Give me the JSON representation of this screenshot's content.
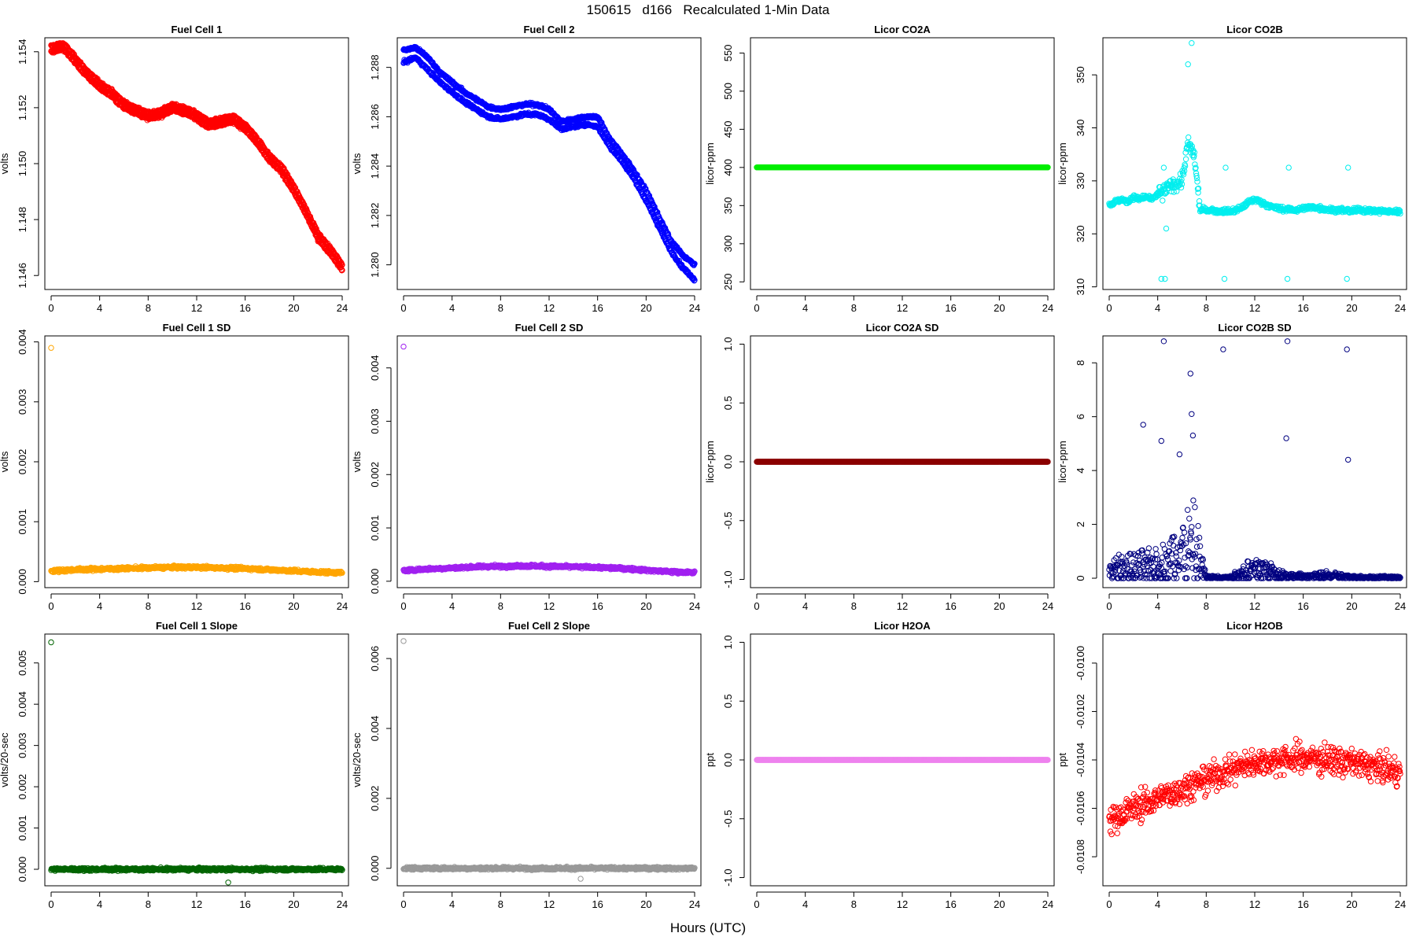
{
  "figure": {
    "title": "150615   d166   Recalculated 1-Min Data",
    "xlabel": "Hours (UTC)"
  },
  "chart_data": [
    {
      "id": "fc1",
      "type": "scatter",
      "title": "Fuel Cell 1",
      "ylabel": "volts",
      "color": "#ff0000",
      "xlim": [
        0,
        24
      ],
      "xticks": [
        0,
        4,
        8,
        12,
        16,
        20,
        24
      ],
      "ylim": [
        1.1455,
        1.1545
      ],
      "yticks": [
        1.146,
        1.148,
        1.15,
        1.152,
        1.154
      ],
      "yticklabels": [
        "1.146",
        "1.148",
        "1.150",
        "1.152",
        "1.154"
      ],
      "x": [
        0,
        1,
        2,
        3,
        4,
        5,
        6,
        7,
        8,
        9,
        10,
        11,
        12,
        13,
        14,
        15,
        16,
        17,
        18,
        19,
        20,
        21,
        22,
        23,
        24
      ],
      "series": [
        {
          "values": [
            1.1542,
            1.1543,
            1.1538,
            1.1533,
            1.1529,
            1.1526,
            1.1522,
            1.152,
            1.1518,
            1.1519,
            1.1521,
            1.152,
            1.1518,
            1.1515,
            1.1516,
            1.1517,
            1.1514,
            1.1509,
            1.1503,
            1.1499,
            1.1492,
            1.1484,
            1.1475,
            1.147,
            1.1464
          ]
        },
        {
          "values": [
            1.154,
            1.1541,
            1.1536,
            1.1531,
            1.1527,
            1.1524,
            1.152,
            1.1518,
            1.1516,
            1.1517,
            1.1519,
            1.1518,
            1.1516,
            1.1513,
            1.1514,
            1.1515,
            1.1512,
            1.1507,
            1.1501,
            1.1497,
            1.149,
            1.1482,
            1.1473,
            1.1468,
            1.1462
          ]
        }
      ]
    },
    {
      "id": "fc2",
      "type": "scatter",
      "title": "Fuel Cell 2",
      "ylabel": "volts",
      "color": "#0000ff",
      "xlim": [
        0,
        24
      ],
      "xticks": [
        0,
        4,
        8,
        12,
        16,
        20,
        24
      ],
      "ylim": [
        1.279,
        1.2892
      ],
      "yticks": [
        1.28,
        1.282,
        1.284,
        1.286,
        1.288
      ],
      "yticklabels": [
        "1.280",
        "1.282",
        "1.284",
        "1.286",
        "1.288"
      ],
      "x": [
        0,
        1,
        2,
        3,
        4,
        5,
        6,
        7,
        8,
        9,
        10,
        11,
        12,
        13,
        14,
        15,
        16,
        17,
        18,
        19,
        20,
        21,
        22,
        23,
        24
      ],
      "series": [
        {
          "values": [
            1.2887,
            1.2888,
            1.2884,
            1.2878,
            1.2874,
            1.287,
            1.2867,
            1.2864,
            1.2863,
            1.2864,
            1.2865,
            1.2865,
            1.2863,
            1.2858,
            1.2859,
            1.286,
            1.286,
            1.2851,
            1.2845,
            1.2838,
            1.283,
            1.282,
            1.281,
            1.2804,
            1.28
          ]
        },
        {
          "values": [
            1.2882,
            1.2884,
            1.2879,
            1.2874,
            1.287,
            1.2866,
            1.2863,
            1.286,
            1.2859,
            1.286,
            1.2861,
            1.2861,
            1.2859,
            1.2855,
            1.2856,
            1.2857,
            1.2856,
            1.2848,
            1.2842,
            1.2835,
            1.2826,
            1.2816,
            1.2806,
            1.2799,
            1.2794
          ]
        }
      ]
    },
    {
      "id": "co2a",
      "type": "scatter",
      "title": "Licor CO2A",
      "ylabel": "licor-ppm",
      "color": "#00ee00",
      "xlim": [
        0,
        24
      ],
      "xticks": [
        0,
        4,
        8,
        12,
        16,
        20,
        24
      ],
      "ylim": [
        240,
        570
      ],
      "yticks": [
        250,
        300,
        350,
        400,
        450,
        500,
        550
      ],
      "yticklabels": [
        "250",
        "300",
        "350",
        "400",
        "450",
        "500",
        "550"
      ],
      "x": [
        0,
        24
      ],
      "series": [
        {
          "values": [
            400,
            400
          ]
        }
      ]
    },
    {
      "id": "co2b",
      "type": "scatter",
      "title": "Licor CO2B",
      "ylabel": "licor-ppm",
      "color": "#00eeee",
      "xlim": [
        0,
        24
      ],
      "xticks": [
        0,
        4,
        8,
        12,
        16,
        20,
        24
      ],
      "ylim": [
        309.5,
        357
      ],
      "yticks": [
        310,
        320,
        330,
        340,
        350
      ],
      "yticklabels": [
        "310",
        "320",
        "330",
        "340",
        "350"
      ],
      "x": [
        0,
        0.5,
        1,
        1.5,
        2,
        2.5,
        3,
        3.5,
        4,
        4.5,
        5,
        5.5,
        6,
        6.5,
        7,
        7.5,
        8,
        8.5,
        9,
        9.5,
        10,
        10.5,
        11,
        11.5,
        12,
        12.5,
        13,
        13.5,
        14,
        14.5,
        15,
        15.5,
        16,
        16.5,
        17,
        17.5,
        18,
        18.5,
        19,
        19.5,
        20,
        20.5,
        21,
        21.5,
        22,
        22.5,
        23,
        23.5,
        24
      ],
      "series": [
        {
          "values": [
            325.5,
            326,
            326.5,
            326,
            327,
            326.5,
            327,
            326.5,
            327.5,
            328,
            329,
            329.5,
            330,
            337,
            335,
            324.5,
            324.5,
            324.5,
            324.2,
            324.3,
            324.2,
            324.5,
            325,
            326,
            326.5,
            326,
            325.5,
            325,
            324.8,
            324.6,
            324.6,
            324.5,
            324.8,
            325,
            325,
            324.8,
            324.6,
            324.5,
            324.5,
            324.4,
            324.3,
            324.5,
            324.5,
            324.4,
            324.3,
            324.3,
            324.2,
            324.2,
            324.2
          ]
        }
      ],
      "outliers": {
        "x": [
          4.3,
          4.5,
          4.7,
          9.5,
          9.6,
          14.7,
          14.8,
          19.6,
          19.7,
          4.6,
          6.8,
          6.5
        ],
        "values": [
          311.5,
          332.5,
          321,
          311.5,
          332.5,
          311.5,
          332.5,
          311.5,
          332.5,
          311.5,
          356,
          352
        ]
      }
    },
    {
      "id": "fc1sd",
      "type": "scatter",
      "title": "Fuel Cell 1 SD",
      "ylabel": "volts",
      "color": "#ffa500",
      "xlim": [
        0,
        24
      ],
      "xticks": [
        0,
        4,
        8,
        12,
        16,
        20,
        24
      ],
      "ylim": [
        -0.0001,
        0.0041
      ],
      "yticks": [
        0,
        0.001,
        0.002,
        0.003,
        0.004
      ],
      "yticklabels": [
        "0.000",
        "0.001",
        "0.002",
        "0.003",
        "0.004"
      ],
      "x": [
        0,
        2,
        4,
        6,
        8,
        10,
        12,
        14,
        16,
        18,
        20,
        22,
        24
      ],
      "series": [
        {
          "values": [
            0.00018,
            0.0002,
            0.00021,
            0.00022,
            0.00023,
            0.00024,
            0.00024,
            0.00023,
            0.00022,
            0.0002,
            0.00018,
            0.00016,
            0.00015
          ]
        }
      ],
      "outliers": {
        "x": [
          0
        ],
        "values": [
          0.0039
        ]
      }
    },
    {
      "id": "fc2sd",
      "type": "scatter",
      "title": "Fuel Cell 2 SD",
      "ylabel": "volts",
      "color": "#a020f0",
      "xlim": [
        0,
        24
      ],
      "xticks": [
        0,
        4,
        8,
        12,
        16,
        20,
        24
      ],
      "ylim": [
        -0.00012,
        0.0046
      ],
      "yticks": [
        0,
        0.001,
        0.002,
        0.003,
        0.004
      ],
      "yticklabels": [
        "0.000",
        "0.001",
        "0.002",
        "0.003",
        "0.004"
      ],
      "x": [
        0,
        2,
        4,
        6,
        8,
        10,
        12,
        14,
        16,
        18,
        20,
        22,
        24
      ],
      "series": [
        {
          "values": [
            0.0002,
            0.00023,
            0.00025,
            0.00027,
            0.00028,
            0.00029,
            0.00028,
            0.00027,
            0.00026,
            0.00024,
            0.00021,
            0.00018,
            0.00016
          ]
        }
      ],
      "outliers": {
        "x": [
          0
        ],
        "values": [
          0.0044
        ]
      }
    },
    {
      "id": "co2asd",
      "type": "scatter",
      "title": "Licor CO2A SD",
      "ylabel": "licor-ppm",
      "color": "#8b0000",
      "xlim": [
        0,
        24
      ],
      "xticks": [
        0,
        4,
        8,
        12,
        16,
        20,
        24
      ],
      "ylim": [
        -1.07,
        1.07
      ],
      "yticks": [
        -1,
        -0.5,
        0,
        0.5,
        1
      ],
      "yticklabels": [
        "-1.0",
        "-0.5",
        "0.0",
        "0.5",
        "1.0"
      ],
      "x": [
        0,
        24
      ],
      "series": [
        {
          "values": [
            0,
            0
          ]
        }
      ]
    },
    {
      "id": "co2bsd",
      "type": "scatter",
      "title": "Licor CO2B SD",
      "ylabel": "licor-ppm",
      "color": "#000080",
      "xlim": [
        0,
        24
      ],
      "xticks": [
        0,
        4,
        8,
        12,
        16,
        20,
        24
      ],
      "ylim": [
        -0.35,
        9.0
      ],
      "yticks": [
        0,
        2,
        4,
        6,
        8
      ],
      "yticklabels": [
        "0",
        "2",
        "4",
        "6",
        "8"
      ],
      "x": [
        0,
        1,
        2,
        3,
        4,
        5,
        6,
        7,
        8,
        9,
        10,
        11,
        12,
        13,
        14,
        15,
        16,
        17,
        18,
        19,
        20,
        21,
        22,
        23,
        24
      ],
      "series": [
        {
          "values": [
            0.4,
            0.5,
            0.5,
            0.6,
            0.6,
            0.9,
            1.3,
            1.6,
            0.05,
            0.05,
            0.05,
            0.3,
            0.5,
            0.4,
            0.2,
            0.1,
            0.1,
            0.1,
            0.15,
            0.1,
            0.05,
            0.05,
            0.05,
            0.05,
            0.03
          ]
        }
      ],
      "outliers": {
        "x": [
          4.5,
          6.7,
          6.8,
          9.4,
          14.7,
          19.6,
          2.8,
          4.3,
          14.6,
          19.7,
          5.8,
          6.9
        ],
        "values": [
          8.8,
          7.6,
          6.1,
          8.5,
          8.8,
          8.5,
          5.7,
          5.1,
          5.2,
          4.4,
          4.6,
          5.3
        ]
      }
    },
    {
      "id": "fc1slope",
      "type": "scatter",
      "title": "Fuel Cell 1 Slope",
      "ylabel": "volts/20-sec",
      "color": "#006400",
      "xlim": [
        0,
        24
      ],
      "xticks": [
        0,
        4,
        8,
        12,
        16,
        20,
        24
      ],
      "ylim": [
        -0.0004,
        0.0057
      ],
      "yticks": [
        0,
        0.001,
        0.002,
        0.003,
        0.004,
        0.005
      ],
      "yticklabels": [
        "0.000",
        "0.001",
        "0.002",
        "0.003",
        "0.004",
        "0.005"
      ],
      "x": [
        0,
        24
      ],
      "series": [
        {
          "values": [
            0,
            0
          ]
        }
      ],
      "outliers": {
        "x": [
          0,
          14.6
        ],
        "values": [
          0.0055,
          -0.00032
        ]
      }
    },
    {
      "id": "fc2slope",
      "type": "scatter",
      "title": "Fuel Cell 2 Slope",
      "ylabel": "volts/20-sec",
      "color": "#999999",
      "xlim": [
        0,
        24
      ],
      "xticks": [
        0,
        4,
        8,
        12,
        16,
        20,
        24
      ],
      "ylim": [
        -0.0005,
        0.0067
      ],
      "yticks": [
        0,
        0.002,
        0.004,
        0.006
      ],
      "yticklabels": [
        "0.000",
        "0.002",
        "0.004",
        "0.006"
      ],
      "x": [
        0,
        24
      ],
      "series": [
        {
          "values": [
            0,
            0
          ]
        }
      ],
      "outliers": {
        "x": [
          0,
          14.6
        ],
        "values": [
          0.0065,
          -0.0003
        ]
      }
    },
    {
      "id": "h2oa",
      "type": "scatter",
      "title": "Licor H2OA",
      "ylabel": "ppt",
      "color": "#ee82ee",
      "xlim": [
        0,
        24
      ],
      "xticks": [
        0,
        4,
        8,
        12,
        16,
        20,
        24
      ],
      "ylim": [
        -1.07,
        1.07
      ],
      "yticks": [
        -1,
        -0.5,
        0,
        0.5,
        1
      ],
      "yticklabels": [
        "-1.0",
        "-0.5",
        "0.0",
        "0.5",
        "1.0"
      ],
      "x": [
        0,
        24
      ],
      "series": [
        {
          "values": [
            0,
            0
          ]
        }
      ]
    },
    {
      "id": "h2ob",
      "type": "scatter",
      "title": "Licor H2OB",
      "ylabel": "ppt",
      "color": "#ff0000",
      "xlim": [
        0,
        24
      ],
      "xticks": [
        0,
        4,
        8,
        12,
        16,
        20,
        24
      ],
      "ylim": [
        -0.01092,
        -0.00988
      ],
      "yticks": [
        -0.0108,
        -0.0106,
        -0.0104,
        -0.0102,
        -0.01
      ],
      "yticklabels": [
        "-0.0108",
        "-0.0106",
        "-0.0104",
        "-0.0102",
        "-0.0100"
      ],
      "x": [
        0,
        2,
        4,
        6,
        8,
        10,
        12,
        14,
        16,
        18,
        20,
        22,
        24
      ],
      "series": [
        {
          "values": [
            -0.01065,
            -0.0106,
            -0.01056,
            -0.01052,
            -0.01048,
            -0.01044,
            -0.01041,
            -0.0104,
            -0.01039,
            -0.0104,
            -0.01041,
            -0.01043,
            -0.01045
          ]
        }
      ]
    }
  ]
}
